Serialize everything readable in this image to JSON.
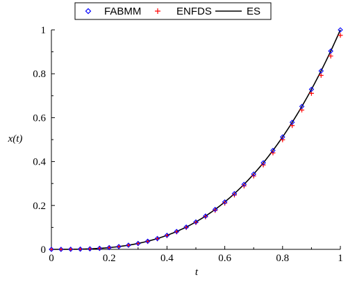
{
  "chart_data": {
    "type": "line",
    "xlabel": "t",
    "ylabel": "x(t)",
    "xlim": [
      0,
      1
    ],
    "ylim": [
      0,
      1
    ],
    "xticks": [
      "0",
      "0.2",
      "0.4",
      "0.6",
      "0.8",
      "1"
    ],
    "yticks": [
      "0",
      "0.2",
      "0.4",
      "0.6",
      "0.8",
      "1"
    ],
    "grid": false,
    "legend_position": "top-center",
    "series": [
      {
        "name": "FABMM",
        "marker": "diamond",
        "color": "#0000ff",
        "x": [
          0,
          0.0333,
          0.0667,
          0.1,
          0.1333,
          0.1667,
          0.2,
          0.2333,
          0.2667,
          0.3,
          0.3333,
          0.3667,
          0.4,
          0.4333,
          0.4667,
          0.5,
          0.5333,
          0.5667,
          0.6,
          0.6333,
          0.6667,
          0.7,
          0.7333,
          0.7667,
          0.8,
          0.8333,
          0.8667,
          0.9,
          0.9333,
          0.9667,
          1
        ],
        "y": [
          0,
          0,
          0.0003,
          0.001,
          0.0024,
          0.0046,
          0.008,
          0.0127,
          0.019,
          0.027,
          0.037,
          0.0493,
          0.064,
          0.0814,
          0.1016,
          0.125,
          0.1517,
          0.182,
          0.216,
          0.254,
          0.2963,
          0.343,
          0.3944,
          0.4507,
          0.512,
          0.5787,
          0.651,
          0.729,
          0.813,
          0.9033,
          1
        ]
      },
      {
        "name": "ENFDS",
        "marker": "plus",
        "color": "#ff0000",
        "x": [
          0,
          0.0333,
          0.0667,
          0.1,
          0.1333,
          0.1667,
          0.2,
          0.2333,
          0.2667,
          0.3,
          0.3333,
          0.3667,
          0.4,
          0.4333,
          0.4667,
          0.5,
          0.5333,
          0.5667,
          0.6,
          0.6333,
          0.6667,
          0.7,
          0.7333,
          0.7667,
          0.8,
          0.8333,
          0.8667,
          0.9,
          0.9333,
          0.9667,
          1
        ],
        "y": [
          0,
          0,
          0.0003,
          0.001,
          0.0023,
          0.0045,
          0.0078,
          0.0124,
          0.0185,
          0.0263,
          0.0361,
          0.048,
          0.0624,
          0.0794,
          0.0991,
          0.1219,
          0.1479,
          0.1775,
          0.2106,
          0.2477,
          0.2889,
          0.3344,
          0.3845,
          0.4394,
          0.4992,
          0.5642,
          0.6347,
          0.7108,
          0.7927,
          0.8807,
          0.975
        ]
      },
      {
        "name": "ES",
        "marker": "none",
        "color": "#000000",
        "function": "t^3"
      }
    ]
  }
}
